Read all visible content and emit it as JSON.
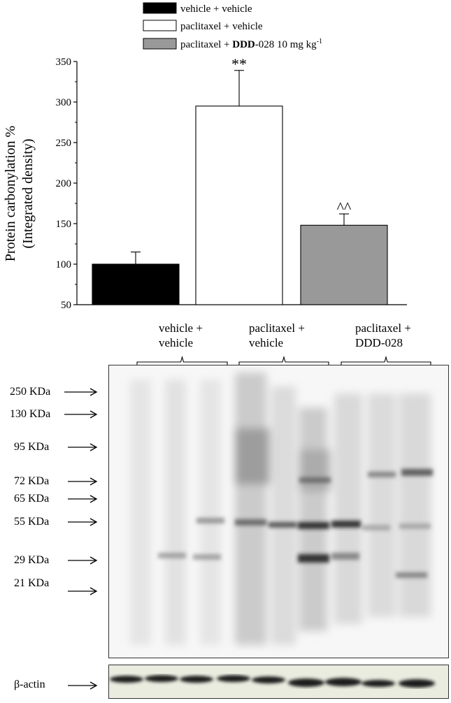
{
  "chart_data": {
    "type": "bar",
    "categories": [
      "vehicle + vehicle",
      "paclitaxel + vehicle",
      "paclitaxel + DDD-028 10 mg kg-1"
    ],
    "legend": [
      {
        "label_plain": "vehicle + vehicle",
        "color": "#000000"
      },
      {
        "label_plain": "paclitaxel + vehicle",
        "color": "#ffffff"
      },
      {
        "label_prefix": "paclitaxel + ",
        "label_bold": "DDD",
        "label_suffix": "-028 10 mg kg",
        "label_sup": "-1",
        "color": "#999999"
      }
    ],
    "values": [
      100,
      295,
      148
    ],
    "errors": [
      15,
      44,
      14
    ],
    "colors": [
      "#000000",
      "#ffffff",
      "#999999"
    ],
    "annotations": [
      "",
      "**",
      "^^"
    ],
    "ylabel_line1": "Protein carbonylation %",
    "ylabel_line2": "(Integrated density)",
    "ylim": [
      50,
      350
    ],
    "yticks": [
      50,
      100,
      150,
      200,
      250,
      300,
      350
    ],
    "legend_position": "top"
  },
  "western_blot": {
    "group_labels": [
      "vehicle +\nvehicle",
      "paclitaxel +\nvehicle",
      "paclitaxel +\nDDD-028"
    ],
    "markers": [
      "250 KDa",
      "130 KDa",
      "95 KDa",
      "72 KDa",
      "65 KDa",
      "55 KDa",
      "29 KDa",
      "21 KDa"
    ],
    "loading_control": "β-actin",
    "background_color": "#f7f7f7"
  }
}
